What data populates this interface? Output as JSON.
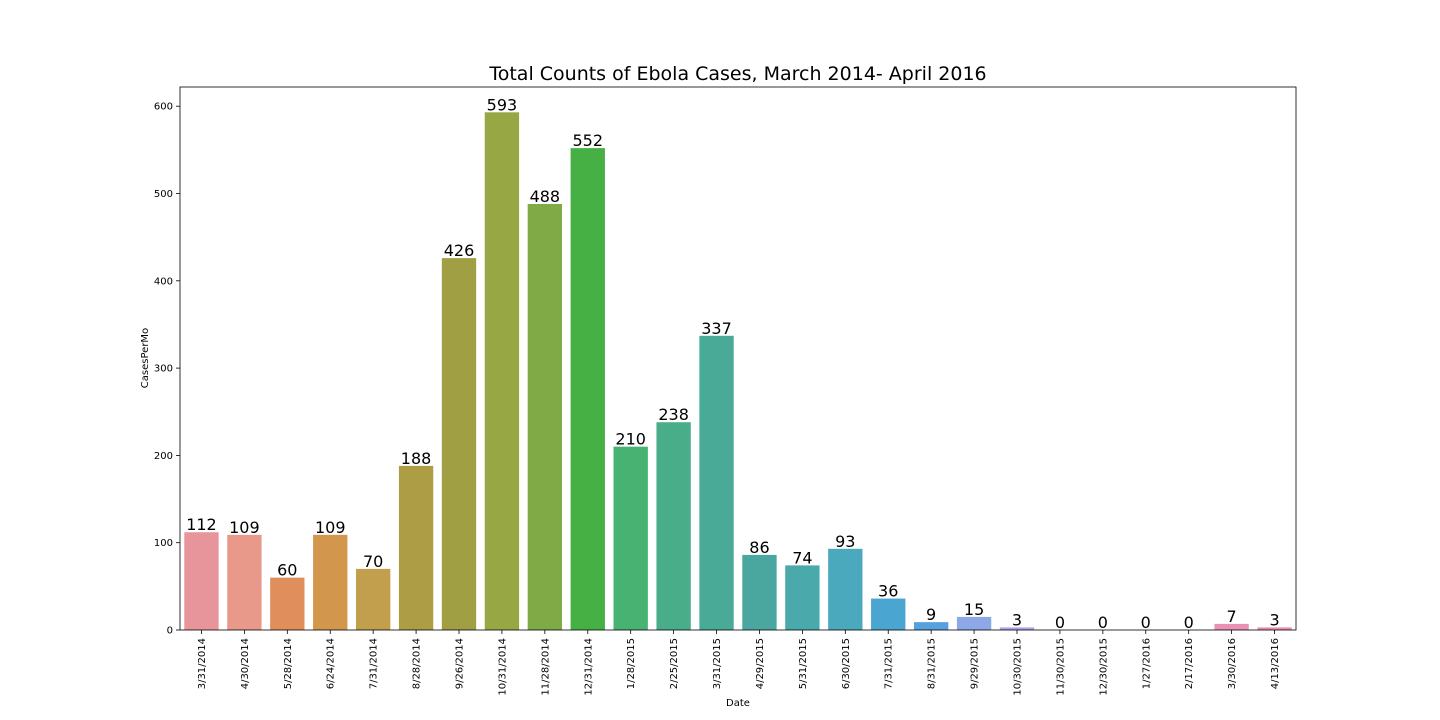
{
  "chart_data": {
    "type": "bar",
    "title": "Total Counts of Ebola Cases, March 2014- April 2016",
    "xlabel": "Date",
    "ylabel": "CasesPerMo",
    "ylim": [
      0,
      622
    ],
    "yticks": [
      0,
      100,
      200,
      300,
      400,
      500,
      600
    ],
    "grid": false,
    "categories": [
      "3/31/2014",
      "4/30/2014",
      "5/28/2014",
      "6/24/2014",
      "7/31/2014",
      "8/28/2014",
      "9/26/2014",
      "10/31/2014",
      "11/28/2014",
      "12/31/2014",
      "1/28/2015",
      "2/25/2015",
      "3/31/2015",
      "4/29/2015",
      "5/31/2015",
      "6/30/2015",
      "7/31/2015",
      "8/31/2015",
      "9/29/2015",
      "10/30/2015",
      "11/30/2015",
      "12/30/2015",
      "1/27/2016",
      "2/17/2016",
      "3/30/2016",
      "4/13/2016"
    ],
    "values": [
      112,
      109,
      60,
      109,
      70,
      188,
      426,
      593,
      488,
      552,
      210,
      238,
      337,
      86,
      74,
      93,
      36,
      9,
      15,
      3,
      0,
      0,
      0,
      0,
      7,
      3
    ],
    "colors": [
      "#e8949b",
      "#e8998a",
      "#e08f5c",
      "#d2974d",
      "#c19f4c",
      "#ad9e46",
      "#a09f44",
      "#96a744",
      "#7faa46",
      "#46b045",
      "#47b271",
      "#48ad88",
      "#48aa97",
      "#49a7a0",
      "#4aa9aa",
      "#4ba9be",
      "#4aa5d0",
      "#58a0de",
      "#8da8e6",
      "#b2a1e8",
      "#cfa0e6",
      "#dd9adf",
      "#e69bd2",
      "#ec95c3",
      "#e992b5",
      "#ea8fa7"
    ]
  }
}
